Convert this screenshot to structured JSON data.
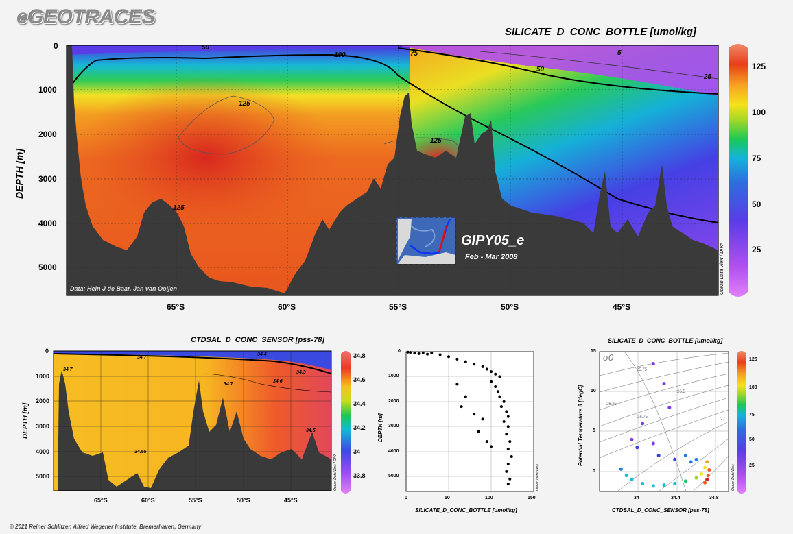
{
  "logo": "eGEOTRACES",
  "footer": "© 2021 Reiner Schlitzer, Alfred Wegener Institute, Bremerhaven, Germany",
  "colors": {
    "background": "#f3f3f3",
    "seafloor": "#3a3a3a",
    "palette": [
      "#c060f0",
      "#7a3ce8",
      "#3b3fe0",
      "#1e7de0",
      "#14c0d0",
      "#1cc96a",
      "#9ad62a",
      "#f3e520",
      "#f6a021",
      "#ee5a1c",
      "#d5201e"
    ]
  },
  "main": {
    "title": "SILICATE_D_CONC_BOTTLE [umol/kg]",
    "ylabel": "DEPTH [m]",
    "credit": "Data: Hein J de Baar, Jan van Ooijen",
    "station": "GIPY05_e",
    "dates": "Feb - Mar 2008",
    "side": "Ocean Data View / DIVA",
    "x_ticks": [
      "65°S",
      "60°S",
      "55°S",
      "50°S",
      "45°S"
    ],
    "y_ticks": [
      "0",
      "1000",
      "2000",
      "3000",
      "4000",
      "5000"
    ],
    "cbar_ticks": [
      "125",
      "100",
      "75",
      "50",
      "25"
    ],
    "contour_labels": [
      "50",
      "100",
      "75",
      "50",
      "5",
      "25",
      "125",
      "125",
      "125"
    ]
  },
  "bottom_left": {
    "title": "CTDSAL_D_CONC_SENSOR [pss-78]",
    "ylabel": "DEPTH [m]",
    "side": "Ocean Data View / DIVA",
    "x_ticks": [
      "65°S",
      "60°S",
      "55°S",
      "50°S",
      "45°S"
    ],
    "y_ticks": [
      "0",
      "1000",
      "2000",
      "3000",
      "4000",
      "5000"
    ],
    "cbar_ticks": [
      "34.8",
      "34.6",
      "34.4",
      "34.2",
      "34",
      "33.8"
    ],
    "contour_labels": [
      "34.7",
      "34.7",
      "34.6",
      "34.3",
      "34.4",
      "34.7",
      "34.65",
      "34.5"
    ]
  },
  "bottom_middle": {
    "xlabel": "SILICATE_D_CONC_BOTTLE [umol/kg]",
    "ylabel": "DEPTH [m]",
    "side": "Ocean Data View",
    "x_ticks": [
      "0",
      "50",
      "100",
      "150"
    ],
    "y_ticks": [
      "0",
      "1000",
      "2000",
      "3000",
      "4000",
      "5000"
    ]
  },
  "bottom_right": {
    "title": "SILICATE_D_CONC_BOTTLE [umol/kg]",
    "xlabel": "CTDSAL_D_CONC_SENSOR [pss-78]",
    "ylabel": "Potential Temperature θ [degC]",
    "sigma": "σ0",
    "side": "Ocean Data View",
    "x_ticks": [
      "34",
      "34.4",
      "34.8"
    ],
    "y_ticks": [
      "15",
      "10",
      "5",
      "0"
    ],
    "cbar_ticks": [
      "125",
      "100",
      "75",
      "50",
      "25"
    ],
    "isopycnal_labels": [
      "25.75",
      "26.25",
      "26.5",
      "26.75",
      "27"
    ]
  },
  "chart_data": [
    {
      "type": "heatmap",
      "title": "SILICATE_D_CONC_BOTTLE [umol/kg]",
      "xlabel": "",
      "ylabel": "DEPTH [m]",
      "x_range_lat": [
        -70,
        -41
      ],
      "y_range_depth": [
        0,
        5600
      ],
      "colorbar_range": [
        0,
        135
      ],
      "contours": [
        5,
        25,
        50,
        75,
        100,
        125
      ],
      "section": "GIPY05_e",
      "date": "Feb - Mar 2008"
    },
    {
      "type": "heatmap",
      "title": "CTDSAL_D_CONC_SENSOR [pss-78]",
      "xlabel": "",
      "ylabel": "DEPTH [m]",
      "x_range_lat": [
        -70,
        -41
      ],
      "y_range_depth": [
        0,
        5600
      ],
      "colorbar_range": [
        33.7,
        34.8
      ],
      "contours": [
        34.3,
        34.4,
        34.5,
        34.6,
        34.65,
        34.7
      ]
    },
    {
      "type": "scatter",
      "xlabel": "SILICATE_D_CONC_BOTTLE [umol/kg]",
      "ylabel": "DEPTH [m]",
      "xlim": [
        0,
        150
      ],
      "ylim": [
        5600,
        0
      ],
      "points": [
        [
          2,
          20
        ],
        [
          5,
          30
        ],
        [
          10,
          60
        ],
        [
          15,
          80
        ],
        [
          20,
          40
        ],
        [
          25,
          100
        ],
        [
          30,
          50
        ],
        [
          40,
          120
        ],
        [
          50,
          200
        ],
        [
          60,
          300
        ],
        [
          70,
          400
        ],
        [
          80,
          500
        ],
        [
          90,
          600
        ],
        [
          95,
          700
        ],
        [
          100,
          800
        ],
        [
          105,
          900
        ],
        [
          110,
          1000
        ],
        [
          100,
          1200
        ],
        [
          105,
          1400
        ],
        [
          108,
          1600
        ],
        [
          110,
          1800
        ],
        [
          115,
          2000
        ],
        [
          112,
          2200
        ],
        [
          118,
          2400
        ],
        [
          120,
          2600
        ],
        [
          115,
          2800
        ],
        [
          120,
          3000
        ],
        [
          118,
          3300
        ],
        [
          122,
          3600
        ],
        [
          120,
          3900
        ],
        [
          124,
          4200
        ],
        [
          120,
          4500
        ],
        [
          118,
          4800
        ],
        [
          122,
          5100
        ],
        [
          120,
          5300
        ],
        [
          60,
          1300
        ],
        [
          70,
          1800
        ],
        [
          80,
          2500
        ],
        [
          90,
          2700
        ],
        [
          85,
          3200
        ],
        [
          95,
          3600
        ],
        [
          100,
          3800
        ],
        [
          65,
          2200
        ]
      ]
    },
    {
      "type": "scatter",
      "title": "SILICATE_D_CONC_BOTTLE [umol/kg]",
      "xlabel": "CTDSAL_D_CONC_SENSOR [pss-78]",
      "ylabel": "Potential Temperature θ [degC]",
      "xlim": [
        33.7,
        34.9
      ],
      "ylim": [
        -2.5,
        15
      ],
      "points": [
        [
          34.2,
          13.5,
          10
        ],
        [
          34.3,
          11,
          15
        ],
        [
          34.35,
          8,
          20
        ],
        [
          34.1,
          6,
          15
        ],
        [
          34.0,
          4,
          20
        ],
        [
          34.05,
          3,
          25
        ],
        [
          34.2,
          3.5,
          20
        ],
        [
          34.25,
          2,
          25
        ],
        [
          34.4,
          1.5,
          30
        ],
        [
          34.5,
          2,
          35
        ],
        [
          34.55,
          1.2,
          40
        ],
        [
          34.6,
          1.5,
          45
        ],
        [
          33.9,
          0.3,
          45
        ],
        [
          33.95,
          -0.5,
          50
        ],
        [
          34.0,
          -1,
          55
        ],
        [
          34.1,
          -1.5,
          55
        ],
        [
          34.2,
          -1.8,
          50
        ],
        [
          34.3,
          -1.7,
          55
        ],
        [
          34.4,
          -1.5,
          60
        ],
        [
          34.5,
          -1.2,
          70
        ],
        [
          34.6,
          -0.8,
          80
        ],
        [
          34.65,
          -0.3,
          90
        ],
        [
          34.68,
          0.5,
          100
        ],
        [
          34.7,
          1.2,
          110
        ],
        [
          34.72,
          0.2,
          120
        ],
        [
          34.71,
          -0.5,
          125
        ],
        [
          34.7,
          -1.0,
          130
        ],
        [
          34.68,
          -1.4,
          128
        ]
      ]
    }
  ]
}
